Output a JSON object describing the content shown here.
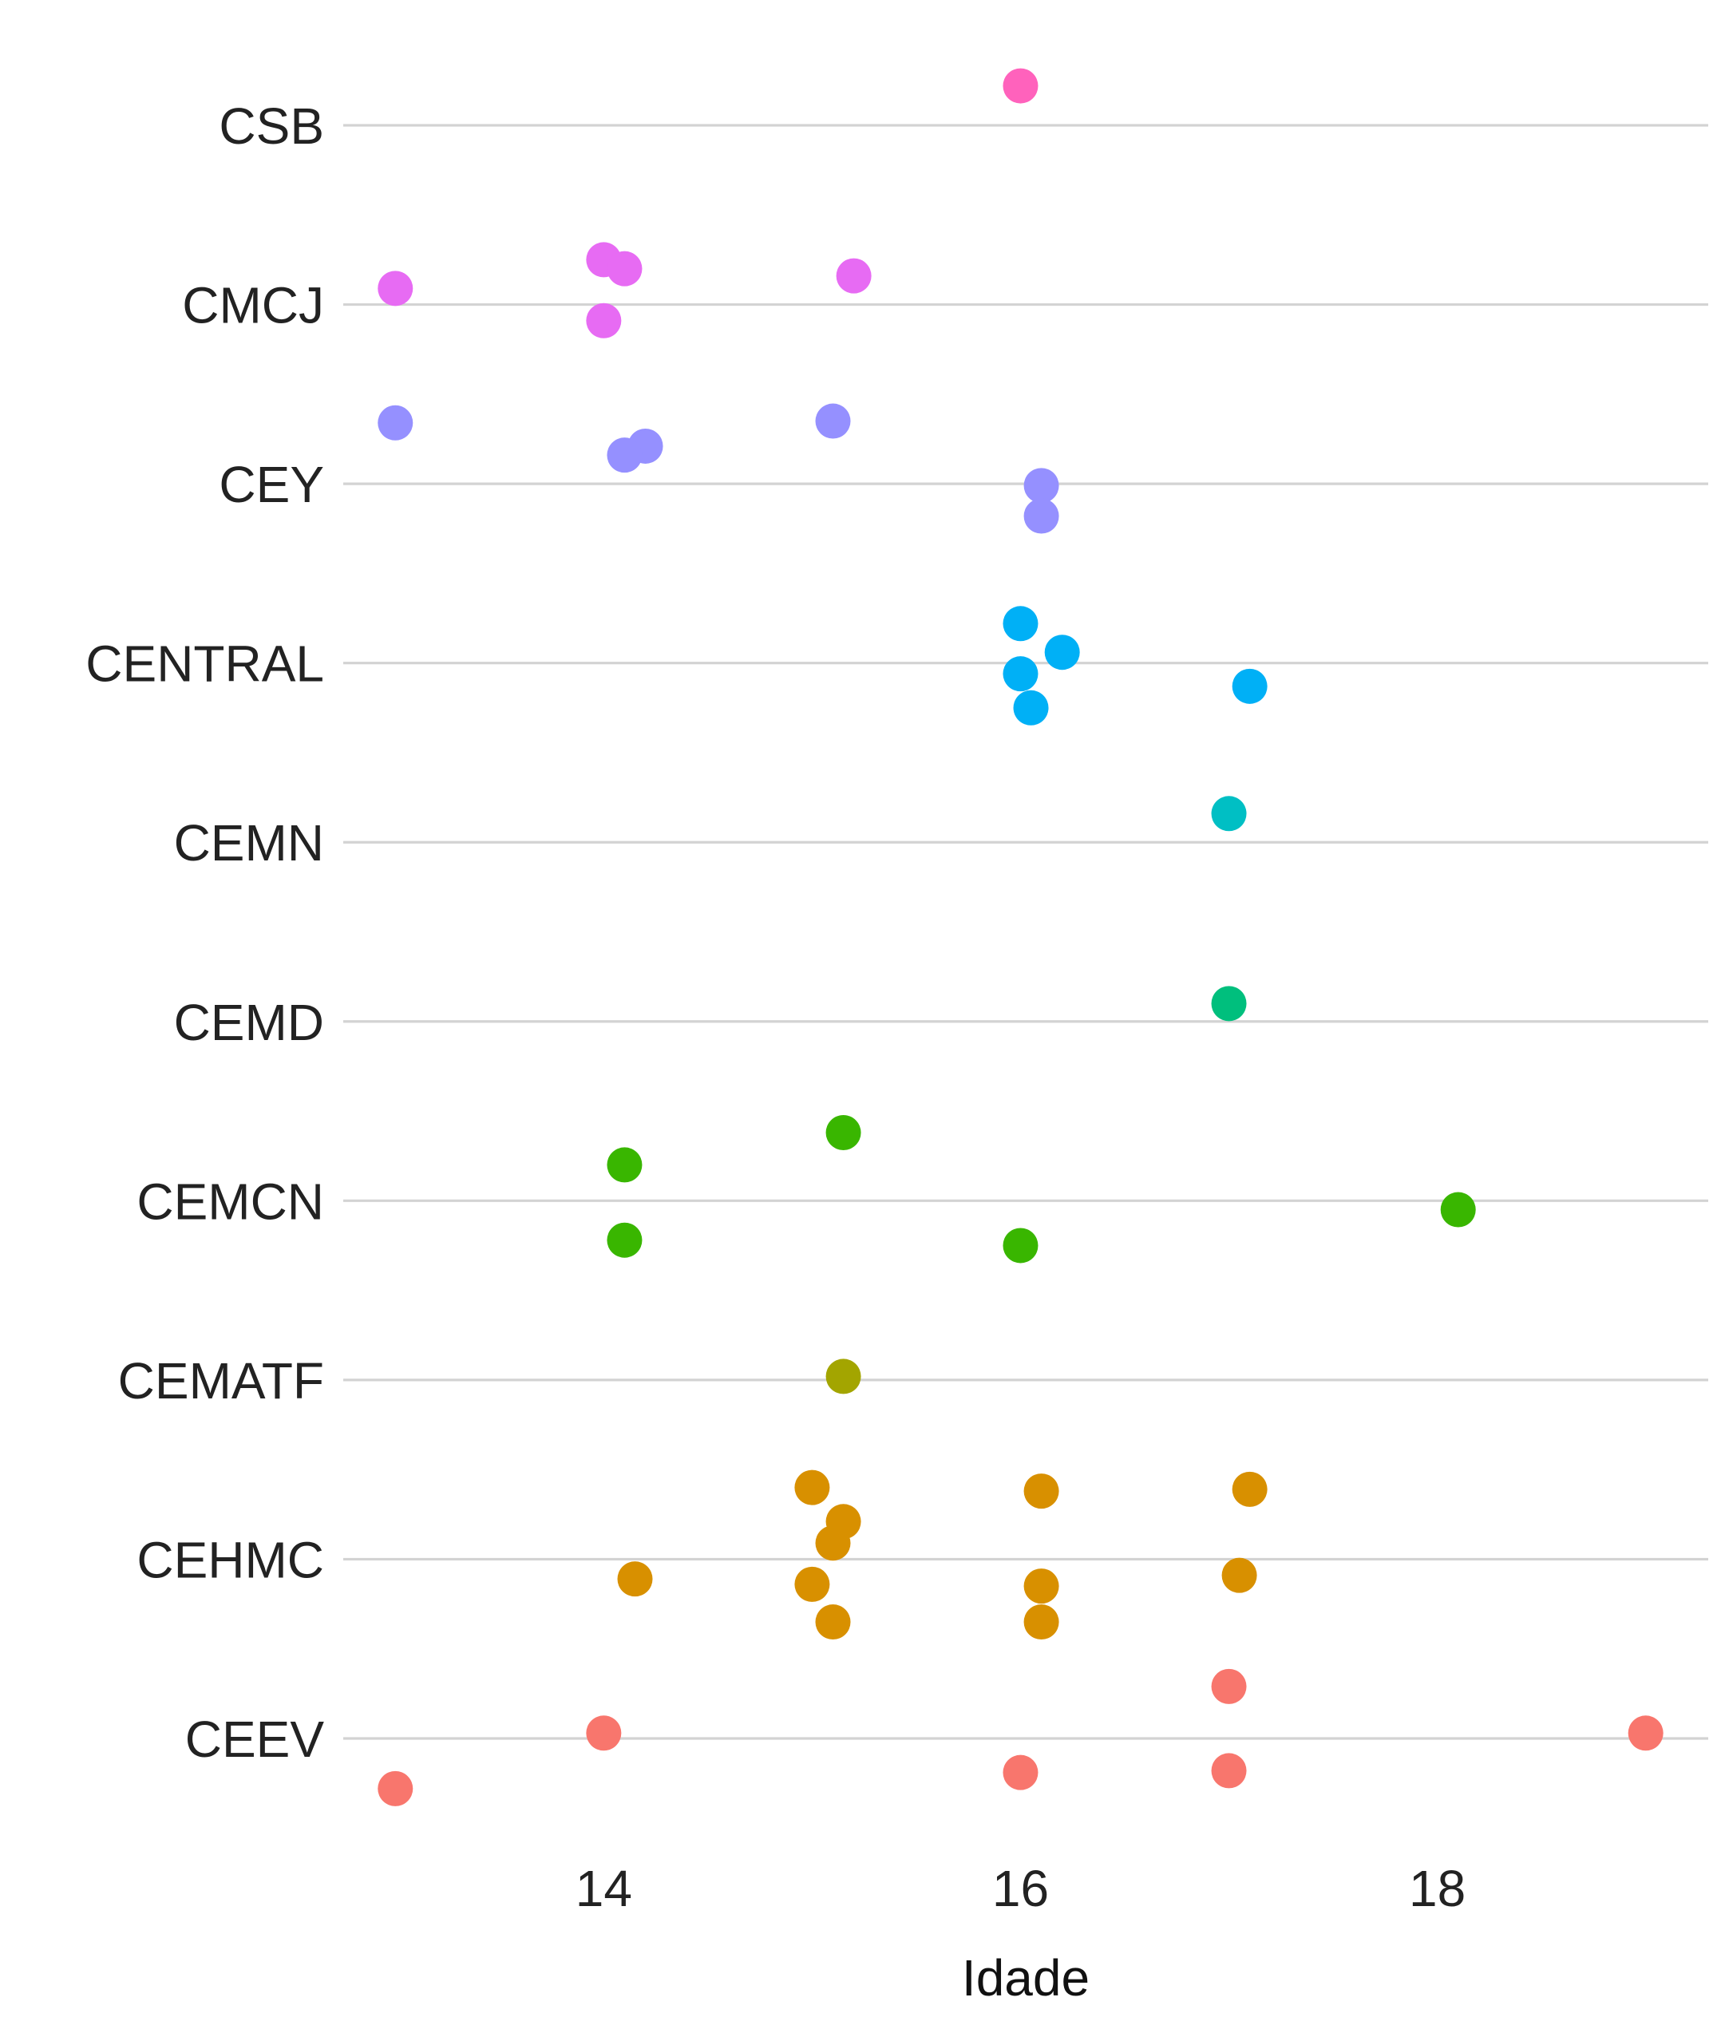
{
  "chart_data": {
    "type": "scatter",
    "xlabel": "Idade",
    "ylabel": "",
    "xlim": [
      12.75,
      19.3
    ],
    "x_ticks": [
      14,
      16,
      18
    ],
    "grid": "horizontal",
    "legend": "none",
    "categories": [
      "CEEV",
      "CEHMC",
      "CEMATF",
      "CEMCN",
      "CEMD",
      "CEMN",
      "CENTRAL",
      "CEY",
      "CMCJ",
      "CSB"
    ],
    "series": [
      {
        "category": "CEEV",
        "color": "#F8766D",
        "points": [
          [
            14.0,
            0.03
          ],
          [
            19.0,
            0.03
          ],
          [
            17.0,
            0.29
          ],
          [
            16.0,
            -0.19
          ],
          [
            17.0,
            -0.18
          ],
          [
            13.0,
            -0.28
          ]
        ]
      },
      {
        "category": "CEHMC",
        "color": "#D89000",
        "points": [
          [
            15.0,
            0.4
          ],
          [
            16.1,
            0.38
          ],
          [
            17.1,
            0.39
          ],
          [
            15.15,
            0.21
          ],
          [
            15.1,
            0.09
          ],
          [
            14.15,
            -0.11
          ],
          [
            15.0,
            -0.14
          ],
          [
            16.1,
            -0.15
          ],
          [
            17.05,
            -0.09
          ],
          [
            15.1,
            -0.35
          ],
          [
            16.1,
            -0.35
          ]
        ]
      },
      {
        "category": "CEMATF",
        "color": "#A3A500",
        "points": [
          [
            15.15,
            0.02
          ]
        ]
      },
      {
        "category": "CEMCN",
        "color": "#39B600",
        "points": [
          [
            15.15,
            0.38
          ],
          [
            14.1,
            0.2
          ],
          [
            18.1,
            -0.05
          ],
          [
            14.1,
            -0.22
          ],
          [
            16.0,
            -0.25
          ]
        ]
      },
      {
        "category": "CEMD",
        "color": "#00BF7D",
        "points": [
          [
            17.0,
            0.1
          ]
        ]
      },
      {
        "category": "CEMN",
        "color": "#00BFC4",
        "points": [
          [
            17.0,
            0.16
          ]
        ]
      },
      {
        "category": "CENTRAL",
        "color": "#00B0F6",
        "points": [
          [
            16.0,
            0.22
          ],
          [
            16.2,
            0.06
          ],
          [
            16.0,
            -0.06
          ],
          [
            17.1,
            -0.13
          ],
          [
            16.05,
            -0.25
          ]
        ]
      },
      {
        "category": "CEY",
        "color": "#9590FF",
        "points": [
          [
            13.0,
            0.34
          ],
          [
            15.1,
            0.35
          ],
          [
            14.2,
            0.21
          ],
          [
            14.1,
            0.16
          ],
          [
            16.1,
            -0.01
          ],
          [
            16.1,
            -0.18
          ]
        ]
      },
      {
        "category": "CMCJ",
        "color": "#E76BF3",
        "points": [
          [
            14.0,
            0.25
          ],
          [
            14.1,
            0.2
          ],
          [
            15.2,
            0.16
          ],
          [
            13.0,
            0.09
          ],
          [
            14.0,
            -0.09
          ]
        ]
      },
      {
        "category": "CSB",
        "color": "#FF62BC",
        "points": [
          [
            16.0,
            0.22
          ]
        ]
      }
    ]
  }
}
